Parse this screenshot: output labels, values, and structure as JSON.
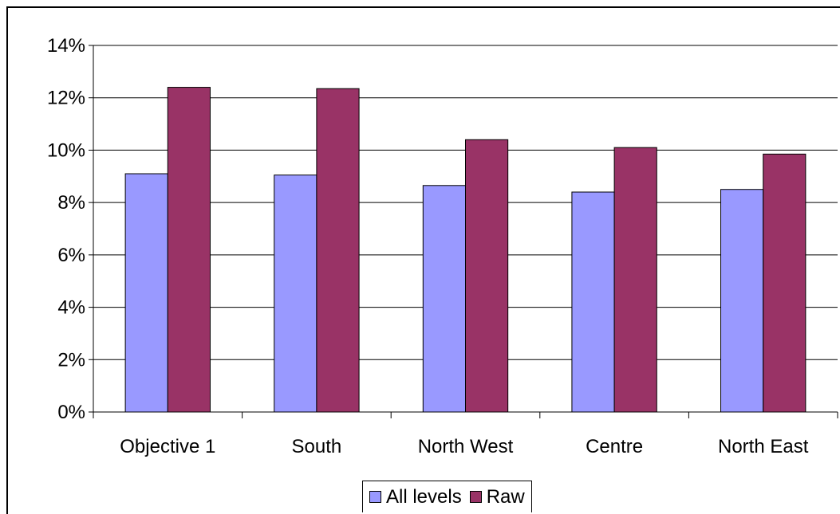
{
  "chart_data": {
    "type": "bar",
    "categories": [
      "Objective 1",
      "South",
      "North West",
      "Centre",
      "North East"
    ],
    "series": [
      {
        "name": "All levels",
        "color": "#9999ff",
        "values": [
          9.1,
          9.05,
          8.65,
          8.4,
          8.5
        ]
      },
      {
        "name": "Raw",
        "color": "#993366",
        "values": [
          12.4,
          12.35,
          10.4,
          10.1,
          9.85
        ]
      }
    ],
    "yticks": [
      "0%",
      "2%",
      "4%",
      "6%",
      "8%",
      "10%",
      "12%",
      "14%"
    ],
    "ylim": [
      0,
      14
    ],
    "grid": true,
    "legend_position": "bottom",
    "title": "",
    "xlabel": "",
    "ylabel": ""
  }
}
